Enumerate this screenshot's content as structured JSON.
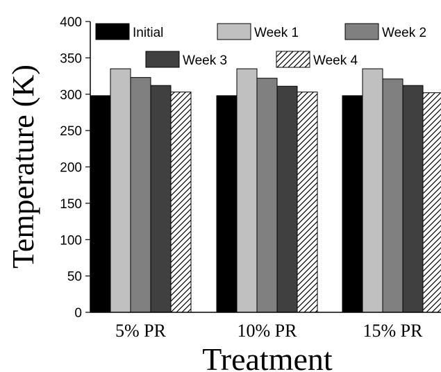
{
  "chart_data": {
    "type": "bar",
    "xlabel": "Treatment",
    "ylabel": "Temperature  (K)",
    "ylim": [
      0,
      400
    ],
    "yticks": [
      0,
      50,
      100,
      150,
      200,
      250,
      300,
      350,
      400
    ],
    "categories": [
      "5% PR",
      "10% PR",
      "15% PR"
    ],
    "series": [
      {
        "name": "Initial",
        "color": "#000000",
        "pattern": "solid",
        "values": [
          298,
          298,
          298
        ]
      },
      {
        "name": "Week 1",
        "color": "#c0c0c0",
        "pattern": "solid",
        "values": [
          335,
          335,
          335
        ]
      },
      {
        "name": "Week 2",
        "color": "#808080",
        "pattern": "solid",
        "values": [
          323,
          322,
          321
        ]
      },
      {
        "name": "Week 3",
        "color": "#404040",
        "pattern": "solid",
        "values": [
          312,
          311,
          312
        ]
      },
      {
        "name": "Week 4",
        "color": "#ffffff",
        "pattern": "hatch",
        "values": [
          303,
          303,
          302
        ]
      }
    ],
    "legend": {
      "placement": "top",
      "frame": false
    },
    "grid": false
  }
}
